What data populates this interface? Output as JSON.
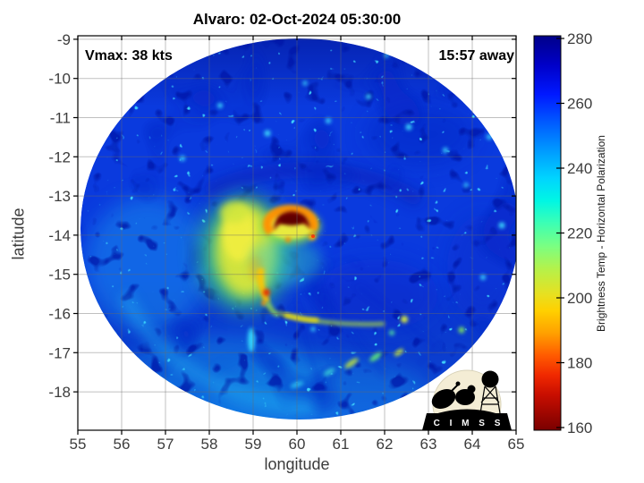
{
  "chart_data": {
    "type": "heatmap",
    "title": "Alvaro: 02-Oct-2024 05:30:00",
    "xlabel": "longitude",
    "ylabel": "latitude",
    "xlim": [
      55,
      65
    ],
    "ylim": [
      -19,
      -9
    ],
    "x_ticks": [
      55,
      56,
      57,
      58,
      59,
      60,
      61,
      62,
      63,
      64,
      65
    ],
    "y_ticks": [
      -9,
      -10,
      -11,
      -12,
      -13,
      -14,
      -15,
      -16,
      -17,
      -18
    ],
    "grid": true,
    "annotations": {
      "top_left": "Vmax: 38 kts",
      "top_right": "15:57 away"
    },
    "colorbar": {
      "label": "Brightness Temp - Horizontal Polarization",
      "ticks": [
        280,
        260,
        240,
        220,
        200,
        180,
        160
      ],
      "range": [
        160,
        280
      ],
      "colormap_stops": [
        {
          "v": 281,
          "c": "#000089"
        },
        {
          "v": 272,
          "c": "#0000c8"
        },
        {
          "v": 263,
          "c": "#0018ff"
        },
        {
          "v": 253,
          "c": "#0064ff"
        },
        {
          "v": 244,
          "c": "#00a4ff"
        },
        {
          "v": 237,
          "c": "#00d4ff"
        },
        {
          "v": 230,
          "c": "#00f6e4"
        },
        {
          "v": 223,
          "c": "#3cffb4"
        },
        {
          "v": 216,
          "c": "#7aff82"
        },
        {
          "v": 209,
          "c": "#b4f24b"
        },
        {
          "v": 201,
          "c": "#e8e020"
        },
        {
          "v": 196,
          "c": "#ffd000"
        },
        {
          "v": 189,
          "c": "#ffa000"
        },
        {
          "v": 182,
          "c": "#ff5a00"
        },
        {
          "v": 176,
          "c": "#f02800"
        },
        {
          "v": 170,
          "c": "#c80e00"
        },
        {
          "v": 159,
          "c": "#7a0000"
        }
      ]
    },
    "swath": {
      "center_lon": 60.0,
      "center_lat": -13.9,
      "radius_deg": 5.0
    },
    "features": [
      {
        "name": "eyewall-core",
        "lon": 59.9,
        "lat": -13.8,
        "tb_K": 165,
        "desc": "dark-red crescent of very cold cloud tops at storm center"
      },
      {
        "name": "eyewall-ring",
        "lon": 59.9,
        "lat": -13.85,
        "tb_K": 185,
        "desc": "orange-red ring hugging the core"
      },
      {
        "name": "west-convective-shield",
        "lon": 58.8,
        "lat": -14.4,
        "tb_K": 208,
        "desc": "broad yellow-green cold cloud shield west-southwest of center"
      },
      {
        "name": "south-band-cell",
        "lon": 59.3,
        "lat": -15.5,
        "tb_K": 190,
        "desc": "orange-red cell in band curving south from center"
      },
      {
        "name": "ese-rainband",
        "lon": 60.8,
        "lat": -16.2,
        "tb_K": 215,
        "desc": "yellow-green rainband arcing east-southeast"
      },
      {
        "name": "outer-band-cells",
        "lon": 61.5,
        "lat": -17.3,
        "tb_K": 235,
        "desc": "scattered cyan-green convective cells in outer bands"
      },
      {
        "name": "background-ocean",
        "tb_K": 258,
        "desc": "blue background brightness temperatures across circular swath"
      }
    ]
  },
  "logo": {
    "text": "C I M S S"
  },
  "colors": {
    "base_blue": "#0a3ade",
    "axis_text": "#3c3c3c",
    "grid": "#6e6e6e"
  }
}
